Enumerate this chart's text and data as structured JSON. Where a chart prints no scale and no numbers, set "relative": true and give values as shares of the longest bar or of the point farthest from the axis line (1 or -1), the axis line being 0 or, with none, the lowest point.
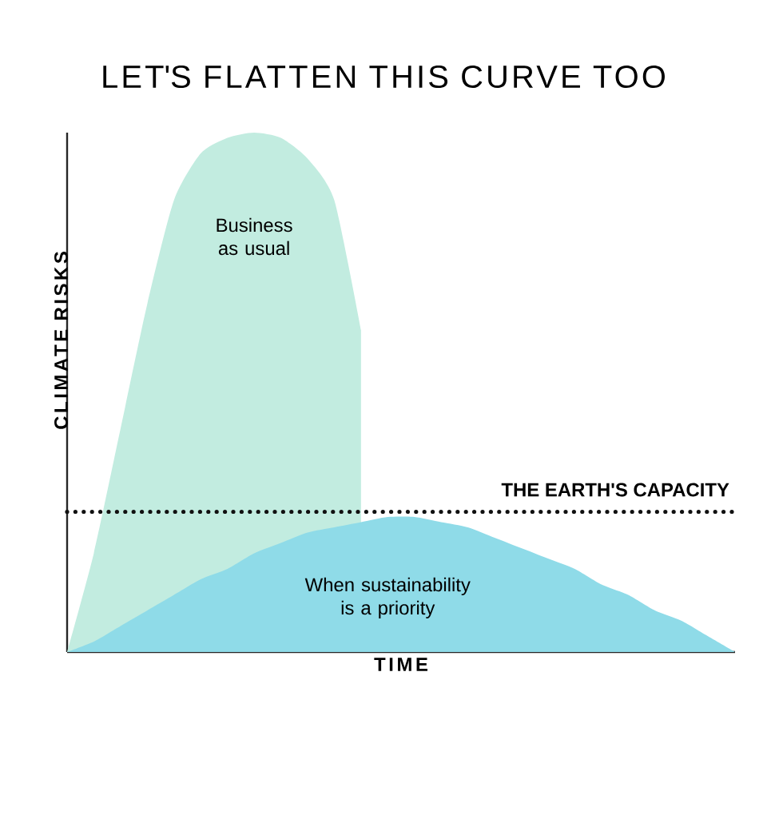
{
  "chart_data": {
    "type": "area",
    "relative": true,
    "title": "LET'S FLATTEN THIS CURVE TOO",
    "xlabel": "TIME",
    "ylabel": "CLIMATE RISKS",
    "categories": [
      null,
      null,
      null,
      null,
      null,
      null,
      null,
      null,
      null,
      null,
      null,
      null,
      null,
      null,
      null,
      null,
      null,
      null,
      null,
      null,
      null,
      null,
      null,
      null,
      null,
      null
    ],
    "series": [
      {
        "color": "#c2ece0",
        "values": [
          0,
          0.19,
          0.43,
          0.67,
          0.87,
          0.96,
          0.99,
          1.0,
          0.99,
          0.95,
          0.87,
          0.62,
          null,
          null,
          null,
          null,
          null,
          null,
          null,
          null,
          null,
          null,
          null,
          null,
          null,
          null
        ]
      },
      {
        "color": "#8fdbe8",
        "values": [
          0,
          0.02,
          0.05,
          0.08,
          0.11,
          0.14,
          0.16,
          0.19,
          0.21,
          0.23,
          0.24,
          0.25,
          0.26,
          0.26,
          0.25,
          0.24,
          0.22,
          0.2,
          0.18,
          0.16,
          0.13,
          0.11,
          0.08,
          0.06,
          0.03,
          0
        ]
      }
    ],
    "ref_lines": [
      {
        "axis": "y",
        "value": 0.27,
        "label": "THE EARTH'S CAPACITY",
        "line_style": "dotted",
        "color": "#111111"
      }
    ],
    "annotations": [
      "Business as usual",
      "When sustainability is a priority"
    ]
  }
}
